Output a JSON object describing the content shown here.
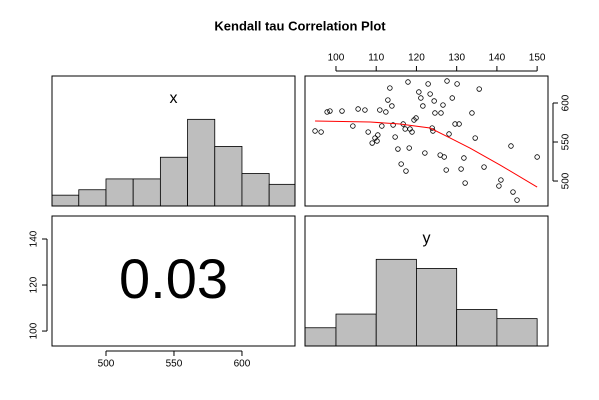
{
  "title": "Kendall tau Correlation Plot",
  "chart_data": [
    {
      "type": "histogram",
      "label": "x",
      "color": "#bebebe",
      "bins": [
        460,
        480,
        500,
        520,
        540,
        560,
        580,
        600,
        620,
        640
      ],
      "counts": [
        2,
        3,
        5,
        5,
        9,
        16,
        11,
        6,
        4
      ],
      "xlim": [
        460.3,
        639
      ],
      "ylim": [
        0,
        24
      ]
    },
    {
      "type": "scatter",
      "point_color": "#000000",
      "x": [
        94.8,
        96.3,
        97.8,
        98.5,
        101.5,
        104.2,
        105.5,
        107.2,
        108.0,
        109.0,
        109.7,
        110.2,
        110.4,
        110.9,
        111.4,
        112.4,
        112.9,
        113.4,
        113.9,
        114.2,
        114.7,
        115.4,
        116.2,
        116.7,
        117.2,
        117.4,
        117.9,
        118.2,
        118.4,
        118.9,
        119.4,
        119.9,
        120.6,
        121.1,
        121.6,
        122.1,
        122.9,
        123.4,
        123.9,
        124.1,
        124.4,
        124.6,
        125.9,
        126.1,
        126.6,
        126.9,
        127.4,
        127.6,
        128.1,
        128.9,
        129.6,
        130.1,
        130.6,
        131.1,
        131.8,
        132.1,
        133.8,
        134.6,
        135.6,
        136.8,
        140.5,
        141.0,
        143.5,
        144.0,
        145.0,
        150.0
      ],
      "y": [
        564.1,
        562.8,
        588.5,
        589.7,
        589.7,
        570.5,
        592.3,
        591.0,
        562.8,
        548.7,
        555.1,
        551.3,
        559.0,
        591.0,
        570.5,
        588.5,
        603.8,
        619.2,
        596.2,
        571.8,
        556.4,
        541.0,
        521.8,
        573.1,
        566.7,
        512.8,
        626.9,
        542.3,
        566.7,
        562.8,
        578.2,
        580.8,
        614.1,
        606.4,
        596.2,
        535.9,
        624.4,
        611.5,
        567.9,
        564.1,
        602.6,
        587.2,
        533.3,
        587.2,
        597.4,
        530.8,
        514.1,
        628.2,
        560.3,
        606.4,
        573.1,
        624.4,
        573.1,
        515.4,
        529.5,
        497.4,
        587.2,
        555.1,
        617.9,
        517.9,
        493.6,
        501.3,
        544.9,
        485.9,
        475.6,
        530.8
      ],
      "line": {
        "color": "#ff0000",
        "x": [
          94.8,
          108.5,
          115.9,
          123.4,
          128.4,
          133.3,
          140.8,
          150.0
        ],
        "y": [
          576.9,
          575.6,
          573.1,
          567.9,
          555.1,
          542.3,
          520.5,
          492.3
        ]
      },
      "xlim": [
        92.3,
        152.7
      ],
      "xticks": [
        100,
        110,
        120,
        130,
        140,
        150
      ],
      "ylim": [
        468,
        634.6
      ],
      "yticks": [
        500,
        550,
        600
      ]
    },
    {
      "type": "text",
      "value": 0.03,
      "xlim": [
        460.3,
        639
      ],
      "xticks": [
        500,
        550,
        600
      ],
      "ylim": [
        93.5,
        150
      ],
      "yticks": [
        100,
        120,
        140
      ]
    },
    {
      "type": "histogram",
      "label": "y",
      "color": "#bebebe",
      "bins": [
        90,
        100,
        110,
        120,
        130,
        140,
        150
      ],
      "counts": [
        4,
        7,
        19,
        17,
        8,
        6
      ],
      "xlim": [
        92.3,
        152.7
      ],
      "ylim": [
        0,
        28.5
      ]
    }
  ]
}
